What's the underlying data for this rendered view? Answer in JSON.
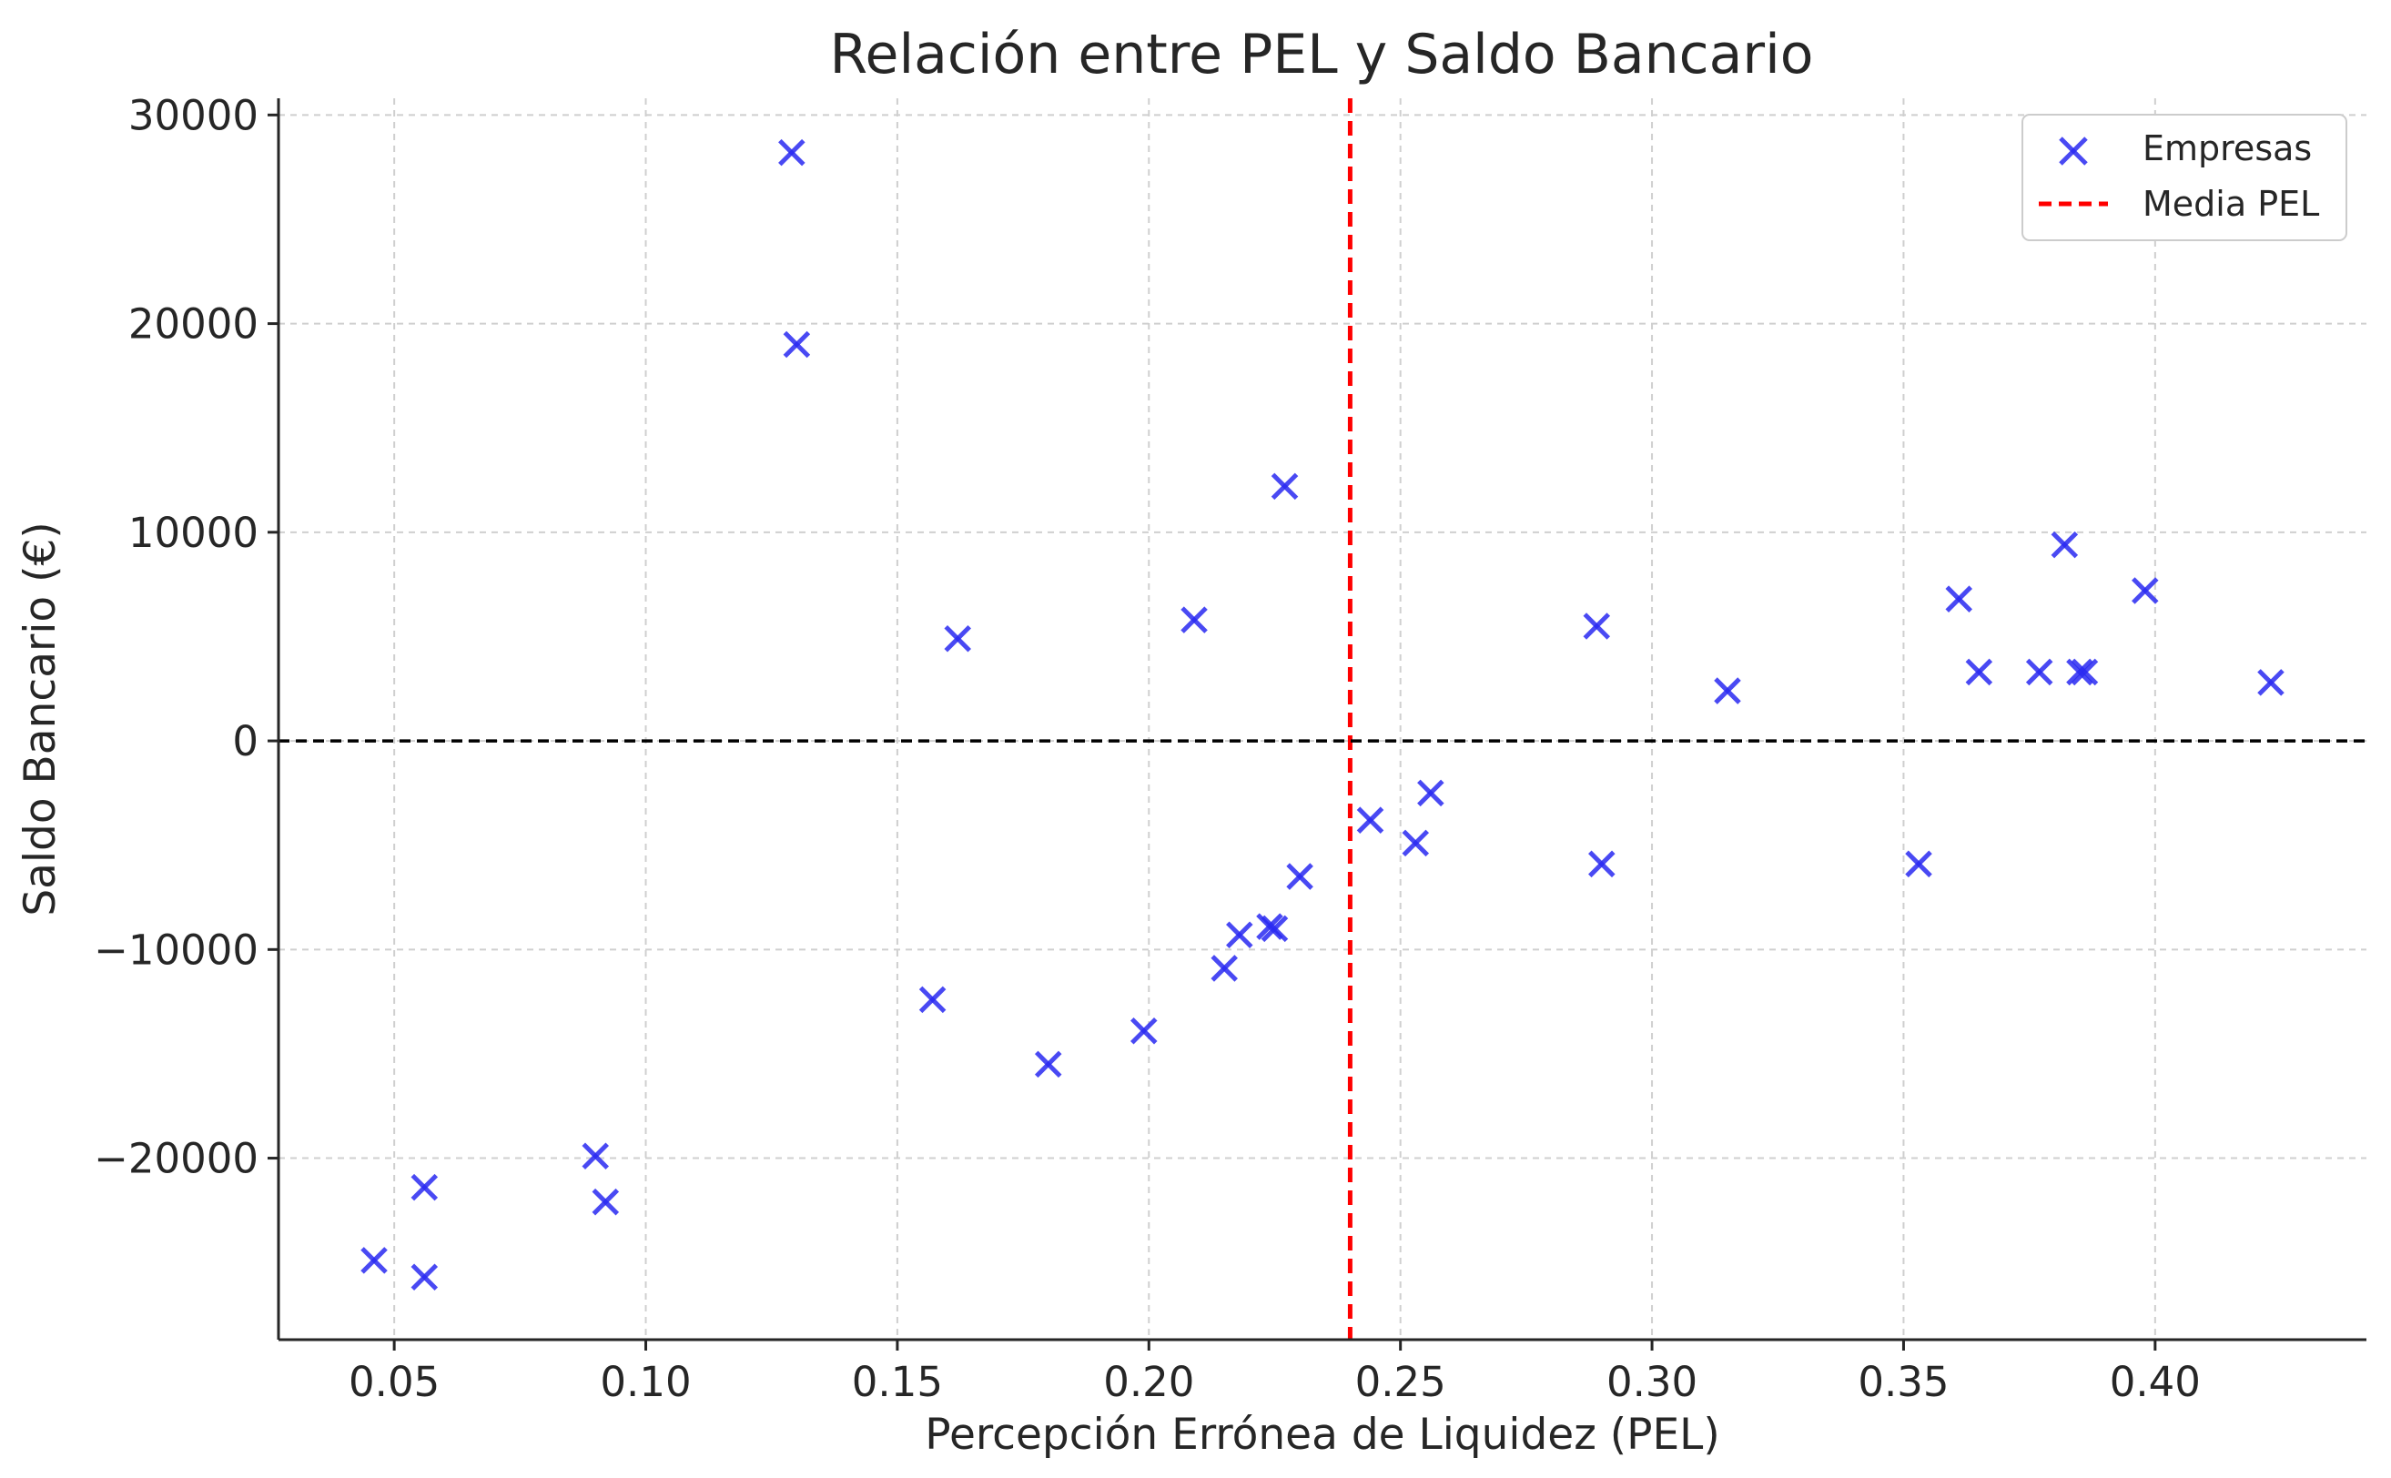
{
  "chart_data": {
    "type": "scatter",
    "title": "Relación entre PEL y Saldo Bancario",
    "xlabel": "Percepción Errónea de Liquidez (PEL)",
    "ylabel": "Saldo Bancario (€)",
    "xlim": [
      0.027,
      0.442
    ],
    "ylim": [
      -28700,
      30800
    ],
    "xticks": [
      0.05,
      0.1,
      0.15,
      0.2,
      0.25,
      0.3,
      0.35,
      0.4
    ],
    "xtick_labels": [
      "0.05",
      "0.10",
      "0.15",
      "0.20",
      "0.25",
      "0.30",
      "0.35",
      "0.40"
    ],
    "yticks": [
      -20000,
      -10000,
      0,
      10000,
      20000,
      30000
    ],
    "ytick_labels": [
      "−20000",
      "−10000",
      "0",
      "10000",
      "20000",
      "30000"
    ],
    "grid": true,
    "legend_position": "top-right",
    "series": [
      {
        "name": "Empresas",
        "marker": "x",
        "color": "#2a2af2",
        "points": [
          [
            0.046,
            -24900
          ],
          [
            0.056,
            -25700
          ],
          [
            0.056,
            -21400
          ],
          [
            0.09,
            -19900
          ],
          [
            0.092,
            -22100
          ],
          [
            0.129,
            28200
          ],
          [
            0.13,
            19000
          ],
          [
            0.157,
            -12400
          ],
          [
            0.162,
            4900
          ],
          [
            0.18,
            -15500
          ],
          [
            0.199,
            -13900
          ],
          [
            0.209,
            5800
          ],
          [
            0.215,
            -10900
          ],
          [
            0.218,
            -9300
          ],
          [
            0.224,
            -8900
          ],
          [
            0.225,
            -9000
          ],
          [
            0.227,
            12200
          ],
          [
            0.23,
            -6500
          ],
          [
            0.244,
            -3800
          ],
          [
            0.253,
            -4900
          ],
          [
            0.256,
            -2500
          ],
          [
            0.289,
            5500
          ],
          [
            0.29,
            -5900
          ],
          [
            0.315,
            2400
          ],
          [
            0.353,
            -5900
          ],
          [
            0.361,
            6800
          ],
          [
            0.365,
            3300
          ],
          [
            0.377,
            3300
          ],
          [
            0.382,
            9400
          ],
          [
            0.385,
            3300
          ],
          [
            0.386,
            3300
          ],
          [
            0.398,
            7200
          ],
          [
            0.423,
            2800
          ]
        ]
      }
    ],
    "reference_lines": [
      {
        "name": "Media PEL",
        "orientation": "vertical",
        "value": 0.24,
        "color": "#ff0000",
        "style": "dashed"
      },
      {
        "orientation": "horizontal",
        "value": 0,
        "color": "#000000",
        "style": "dashed"
      }
    ],
    "legend": [
      {
        "label": "Empresas",
        "type": "marker-x"
      },
      {
        "label": "Media PEL",
        "type": "dashed-line"
      }
    ]
  }
}
